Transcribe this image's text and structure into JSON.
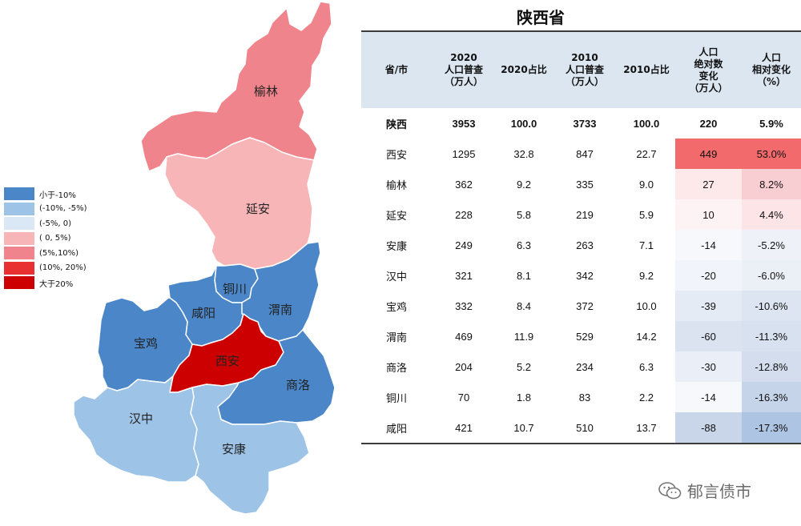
{
  "title": "陕西省",
  "legend": [
    {
      "label": "小于-10%",
      "color": "#4a86c8"
    },
    {
      "label": "(-10%, -5%)",
      "color": "#9dc3e6"
    },
    {
      "label": "(-5%, 0)",
      "color": "#dae7f5"
    },
    {
      "label": "( 0, 5%)",
      "color": "#f8b5b7"
    },
    {
      "label": "(5%,10%)",
      "color": "#f0848c"
    },
    {
      "label": "(10%, 20%)",
      "color": "#e83030"
    },
    {
      "label": "大于20%",
      "color": "#cc0000"
    }
  ],
  "map_regions": [
    {
      "name": "榆林",
      "color": "#f0848c"
    },
    {
      "name": "延安",
      "color": "#f8b5b7"
    },
    {
      "name": "铜川",
      "color": "#4a86c8"
    },
    {
      "name": "咸阳",
      "color": "#4a86c8"
    },
    {
      "name": "渭南",
      "color": "#4a86c8"
    },
    {
      "name": "宝鸡",
      "color": "#4a86c8"
    },
    {
      "name": "西安",
      "color": "#cc0000"
    },
    {
      "name": "商洛",
      "color": "#4a86c8"
    },
    {
      "name": "汉中",
      "color": "#9dc3e6"
    },
    {
      "name": "安康",
      "color": "#9dc3e6"
    }
  ],
  "table": {
    "headers": [
      [
        "省/市"
      ],
      [
        "2020",
        "人口普查",
        "（万人）"
      ],
      [
        "2020占比"
      ],
      [
        "2010",
        "人口普查",
        "（万人）"
      ],
      [
        "2010占比"
      ],
      [
        "人口",
        "绝对数",
        "变化",
        "（万人）"
      ],
      [
        "人口",
        "相对变化",
        "（%）"
      ]
    ],
    "rows": [
      {
        "name": "陕西",
        "pop2020": "3953",
        "share2020": "100.0",
        "pop2010": "3733",
        "share2010": "100.0",
        "abs": "220",
        "rel": "5.9%",
        "bold": true,
        "abs_bg": "#ffffff",
        "rel_bg": "#ffffff"
      },
      {
        "name": "西安",
        "pop2020": "1295",
        "share2020": "32.8",
        "pop2010": "847",
        "share2010": "22.7",
        "abs": "449",
        "rel": "53.0%",
        "bold": false,
        "abs_bg": "#f26a6c",
        "rel_bg": "#f26a6c"
      },
      {
        "name": "榆林",
        "pop2020": "362",
        "share2020": "9.2",
        "pop2010": "335",
        "share2010": "9.0",
        "abs": "27",
        "rel": "8.2%",
        "bold": false,
        "abs_bg": "#fde8ea",
        "rel_bg": "#f9ced3"
      },
      {
        "name": "延安",
        "pop2020": "228",
        "share2020": "5.8",
        "pop2010": "219",
        "share2010": "5.9",
        "abs": "10",
        "rel": "4.4%",
        "bold": false,
        "abs_bg": "#fdf2f4",
        "rel_bg": "#fce4e7"
      },
      {
        "name": "安康",
        "pop2020": "249",
        "share2020": "6.3",
        "pop2010": "263",
        "share2010": "7.1",
        "abs": "-14",
        "rel": "-5.2%",
        "bold": false,
        "abs_bg": "#f6f8fc",
        "rel_bg": "#eef2f8"
      },
      {
        "name": "汉中",
        "pop2020": "321",
        "share2020": "8.1",
        "pop2010": "342",
        "share2010": "9.2",
        "abs": "-20",
        "rel": "-6.0%",
        "bold": false,
        "abs_bg": "#f1f4fa",
        "rel_bg": "#ebf0f7"
      },
      {
        "name": "宝鸡",
        "pop2020": "332",
        "share2020": "8.4",
        "pop2010": "372",
        "share2010": "10.0",
        "abs": "-39",
        "rel": "-10.6%",
        "bold": false,
        "abs_bg": "#e5ebf5",
        "rel_bg": "#dde5f2"
      },
      {
        "name": "渭南",
        "pop2020": "469",
        "share2020": "11.9",
        "pop2010": "529",
        "share2010": "14.2",
        "abs": "-60",
        "rel": "-11.3%",
        "bold": false,
        "abs_bg": "#dbe3f1",
        "rel_bg": "#d8e1f0"
      },
      {
        "name": "商洛",
        "pop2020": "204",
        "share2020": "5.2",
        "pop2010": "234",
        "share2010": "6.3",
        "abs": "-30",
        "rel": "-12.8%",
        "bold": false,
        "abs_bg": "#eaeff7",
        "rel_bg": "#d3ddee"
      },
      {
        "name": "铜川",
        "pop2020": "70",
        "share2020": "1.8",
        "pop2010": "83",
        "share2010": "2.2",
        "abs": "-14",
        "rel": "-16.3%",
        "bold": false,
        "abs_bg": "#f6f8fc",
        "rel_bg": "#c6d4e9"
      },
      {
        "name": "咸阳",
        "pop2020": "421",
        "share2020": "10.7",
        "pop2010": "510",
        "share2010": "13.7",
        "abs": "-88",
        "rel": "-17.3%",
        "bold": false,
        "abs_bg": "#c9d6ea",
        "rel_bg": "#aec4e3"
      }
    ]
  },
  "chart_data": {
    "type": "table",
    "title": "陕西省",
    "columns": [
      "省/市",
      "2020人口普查（万人）",
      "2020占比",
      "2010人口普查（万人）",
      "2010占比",
      "人口绝对数变化（万人）",
      "人口相对变化（%）"
    ],
    "rows": [
      [
        "陕西",
        3953,
        100.0,
        3733,
        100.0,
        220,
        5.9
      ],
      [
        "西安",
        1295,
        32.8,
        847,
        22.7,
        449,
        53.0
      ],
      [
        "榆林",
        362,
        9.2,
        335,
        9.0,
        27,
        8.2
      ],
      [
        "延安",
        228,
        5.8,
        219,
        5.9,
        10,
        4.4
      ],
      [
        "安康",
        249,
        6.3,
        263,
        7.1,
        -14,
        -5.2
      ],
      [
        "汉中",
        321,
        8.1,
        342,
        9.2,
        -20,
        -6.0
      ],
      [
        "宝鸡",
        332,
        8.4,
        372,
        10.0,
        -39,
        -10.6
      ],
      [
        "渭南",
        469,
        11.9,
        529,
        14.2,
        -60,
        -11.3
      ],
      [
        "商洛",
        204,
        5.2,
        234,
        6.3,
        -30,
        -12.8
      ],
      [
        "铜川",
        70,
        1.8,
        83,
        2.2,
        -14,
        -16.3
      ],
      [
        "咸阳",
        421,
        10.7,
        510,
        13.7,
        -88,
        -17.3
      ]
    ]
  },
  "watermark": {
    "text": "郁言债市",
    "icon": "wechat-icon"
  }
}
